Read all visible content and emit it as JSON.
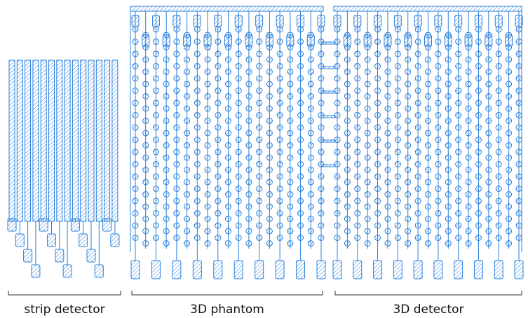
{
  "sections": [
    {
      "label": "strip detector"
    },
    {
      "label": "3D phantom"
    },
    {
      "label": "3D detector"
    }
  ]
}
